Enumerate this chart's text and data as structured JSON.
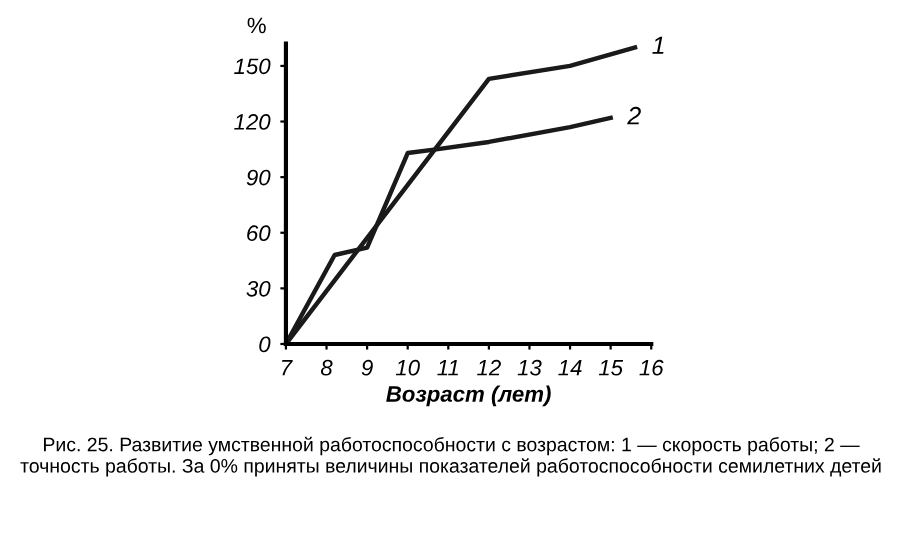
{
  "chart_data": {
    "type": "line",
    "ylabel": "%",
    "xlabel": "Возраст (лет)",
    "series": [
      {
        "name": "1",
        "color": "#1a1a1a",
        "x": [
          7,
          12,
          14,
          15.6
        ],
        "values": [
          0,
          143,
          150,
          160
        ]
      },
      {
        "name": "2",
        "color": "#1a1a1a",
        "x": [
          7,
          8.2,
          9,
          10,
          10.7,
          12,
          14,
          15
        ],
        "values": [
          0,
          48,
          52,
          103,
          105,
          109,
          117,
          122
        ]
      }
    ],
    "xlim": [
      7,
      16
    ],
    "xticks": [
      7,
      8,
      9,
      10,
      11,
      12,
      13,
      14,
      15,
      16
    ],
    "ylim": [
      0,
      162
    ],
    "yticks": [
      0,
      30,
      60,
      90,
      120,
      150
    ],
    "grid": false,
    "legend": false,
    "marker": "none",
    "line_style": "solid",
    "annotations": [
      "Рис. 25. Развитие умственной работоспособности с возрастом: 1 — скорость работы; 2 — точность работы. За 0% приняты величины показателей работоспособности семилетних детей"
    ]
  }
}
